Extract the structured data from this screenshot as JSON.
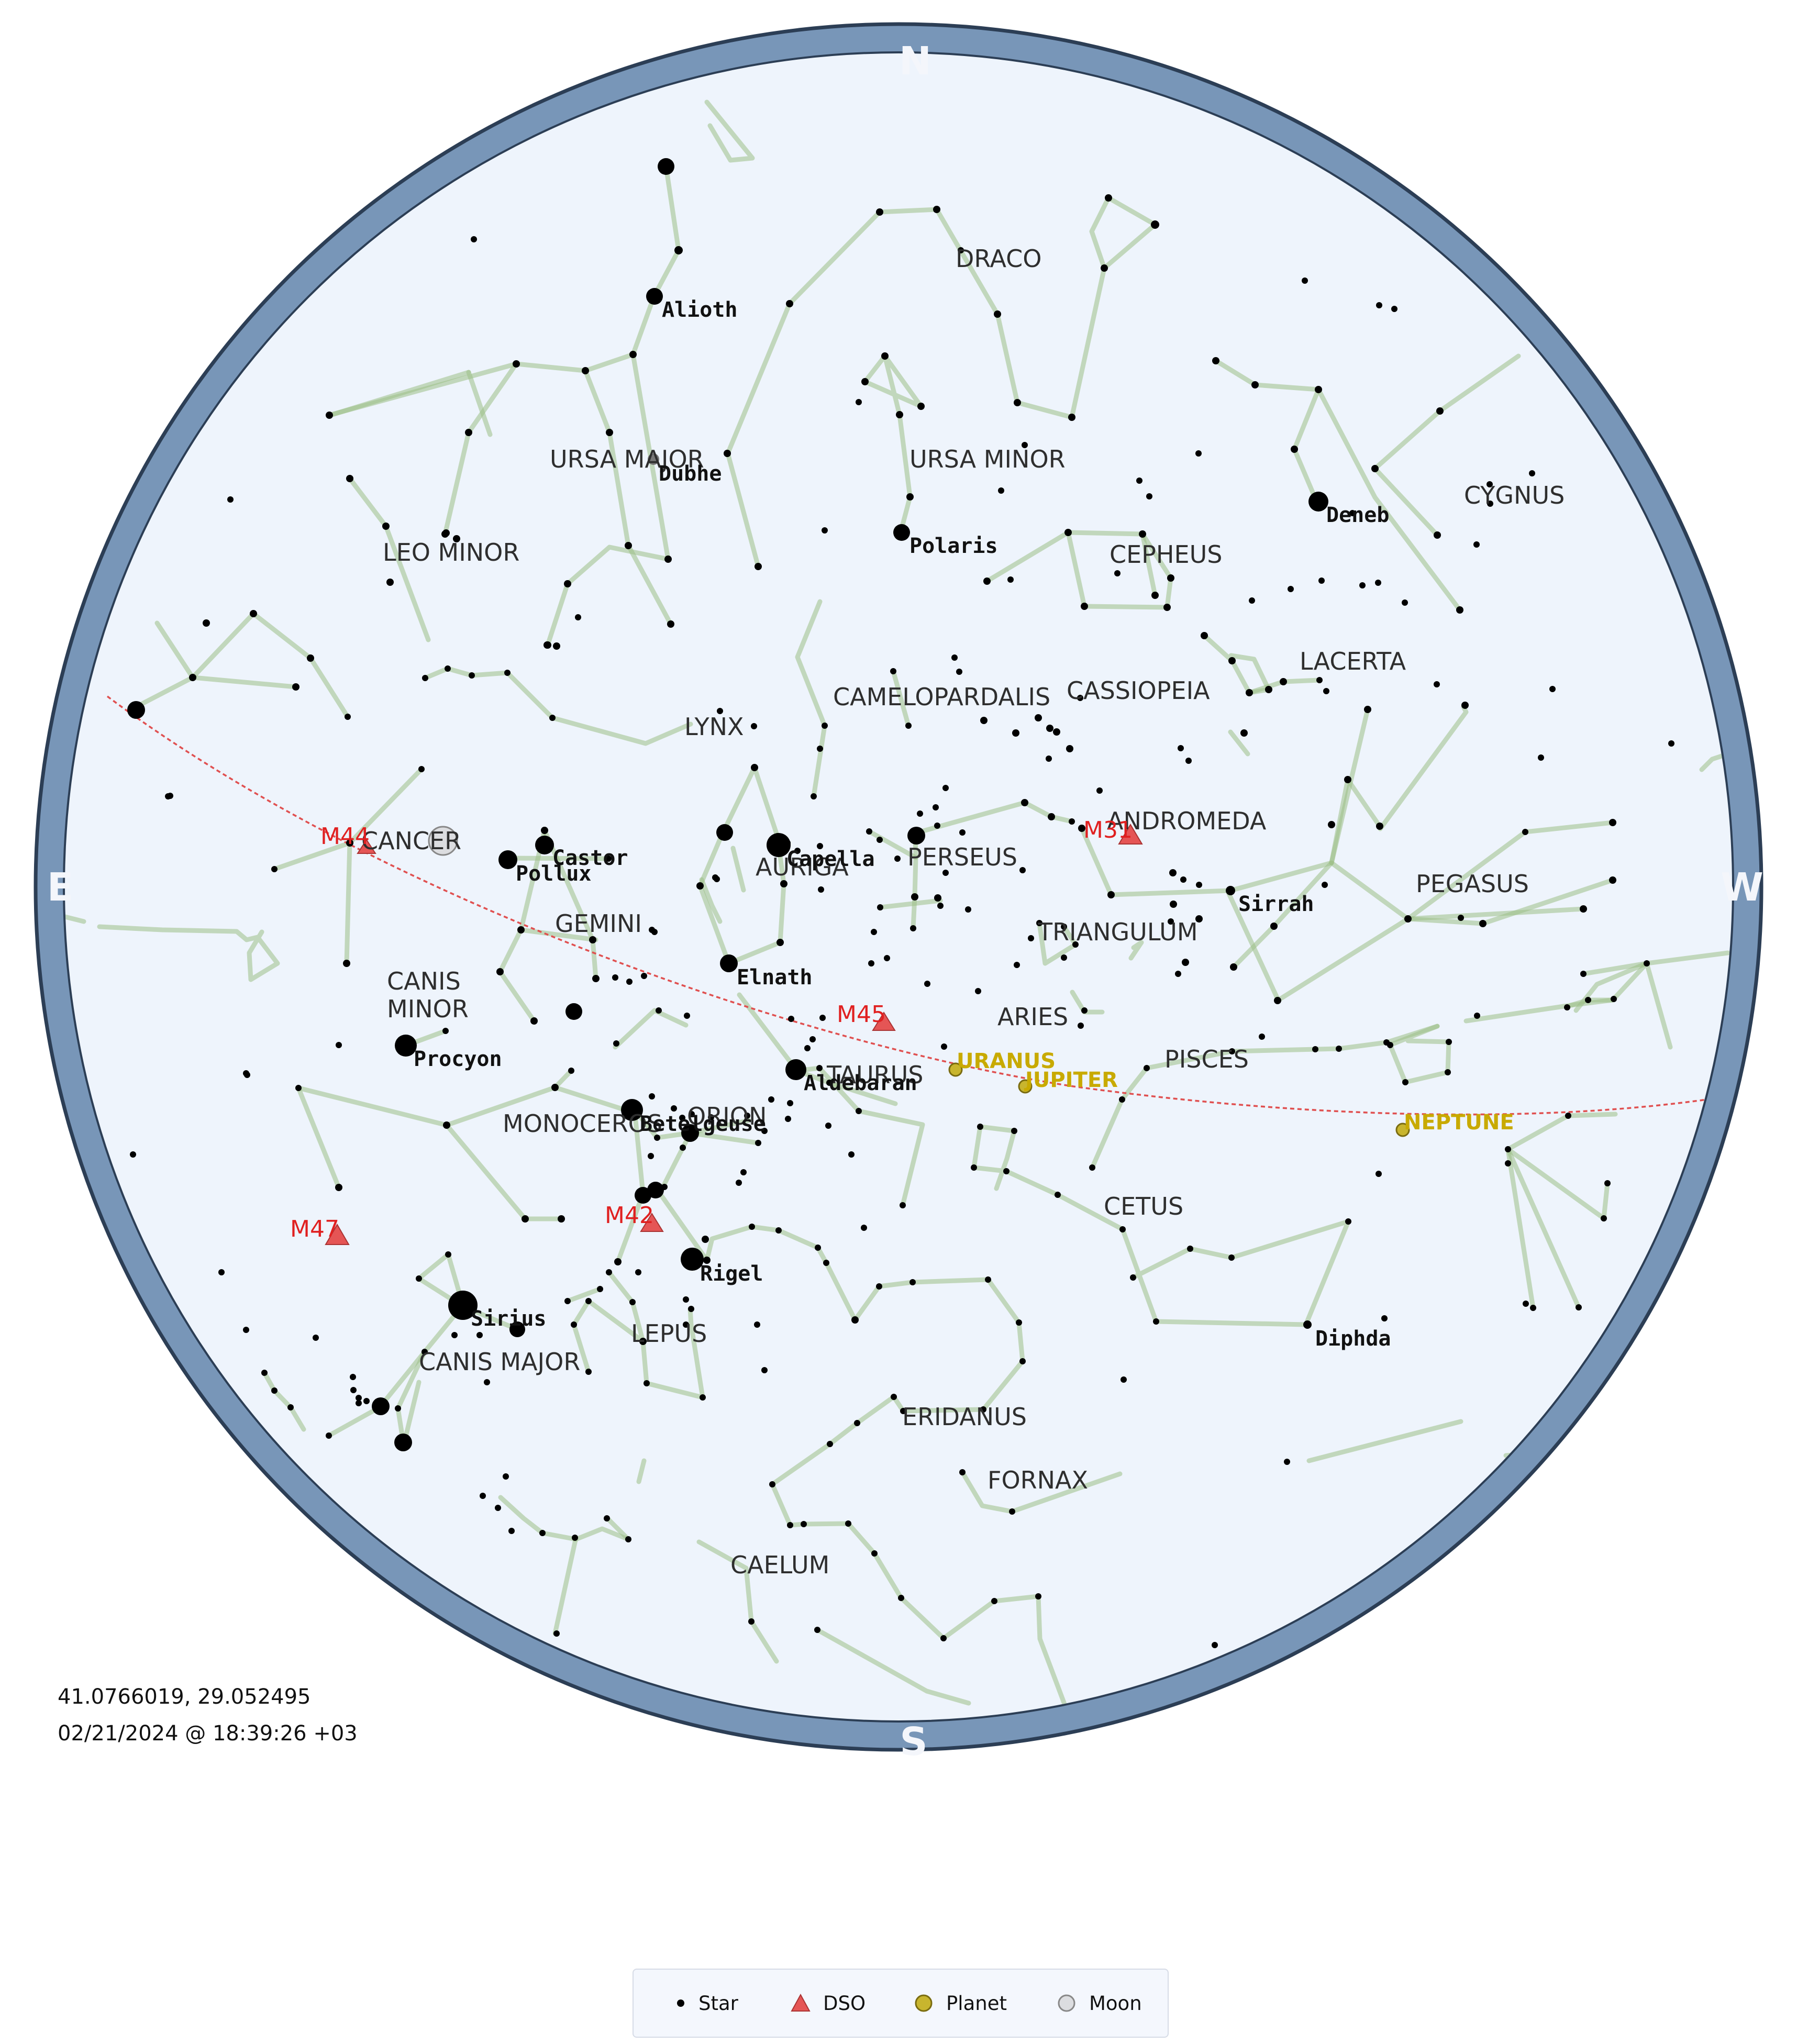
{
  "map": {
    "cardinals": {
      "north": "N",
      "south": "S",
      "east": "E",
      "west": "W"
    },
    "location": "41.0766019, 29.052495",
    "datetime": "02/21/2024 @ 18:39:26 +03",
    "constellations": [
      "DRACO",
      "URSA MAJOR",
      "URSA MINOR",
      "CYGNUS",
      "LEO MINOR",
      "CEPHEUS",
      "LACERTA",
      "LYNX",
      "CAMELOPARDALIS",
      "CASSIOPEIA",
      "CANCER",
      "ANDROMEDA",
      "PERSEUS",
      "AURIGA",
      "PEGASUS",
      "GEMINI",
      "TRIANGULUM",
      "CANIS\nMINOR",
      "ARIES",
      "PISCES",
      "TAURUS",
      "MONOCEROS",
      "ORION",
      "CETUS",
      "LEPUS",
      "CANIS MAJOR",
      "ERIDANUS",
      "FORNAX",
      "CAELUM"
    ],
    "stars": [
      "Alioth",
      "Dubhe",
      "Polaris",
      "Deneb",
      "Castor",
      "Pollux",
      "Capella",
      "Sirrah",
      "Elnath",
      "Procyon",
      "Aldebaran",
      "Betelgeuse",
      "Rigel",
      "Sirius",
      "Diphda"
    ],
    "dsos": [
      "M44",
      "M31",
      "M45",
      "M42",
      "M47"
    ],
    "planets": [
      "URANUS",
      "JUPITER",
      "NEPTUNE"
    ],
    "colors": {
      "sky": "#eef4fc",
      "ring": "#7896b8",
      "ring_border": "#2c3e55",
      "lines": "#9dbf86",
      "dso": "#e55555",
      "planet": "#c8b52e",
      "planet_label": "#c8aa00",
      "ecliptic": "#e05050"
    }
  },
  "legend": {
    "star": "Star",
    "dso": "DSO",
    "planet": "Planet",
    "moon": "Moon"
  }
}
